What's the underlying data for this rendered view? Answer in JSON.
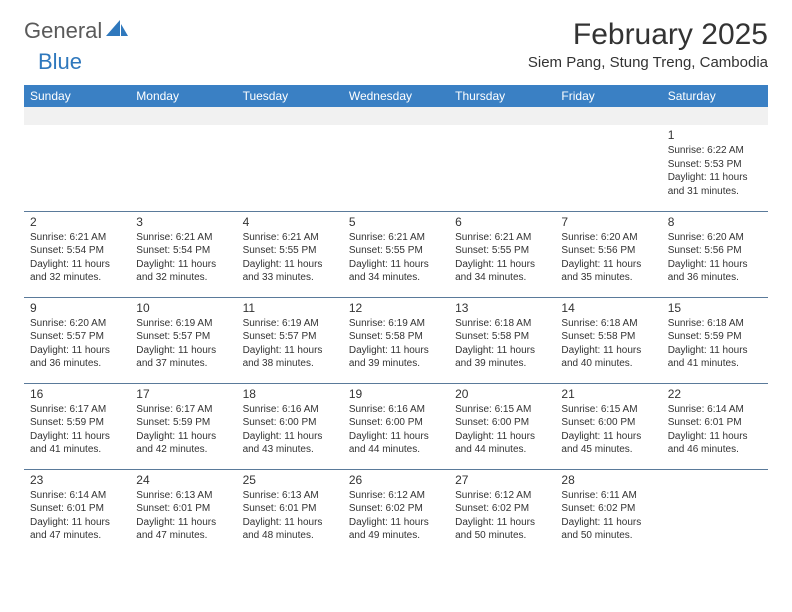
{
  "logo": {
    "text_general": "General",
    "text_blue": "Blue",
    "sail_color": "#2f78bd"
  },
  "title": "February 2025",
  "location": "Siem Pang, Stung Treng, Cambodia",
  "header_row_bg": "#3a80c4",
  "header_row_fg": "#ffffff",
  "divider_color": "#5a7a9a",
  "blank_row_bg": "#f1f1f1",
  "weekdays": [
    "Sunday",
    "Monday",
    "Tuesday",
    "Wednesday",
    "Thursday",
    "Friday",
    "Saturday"
  ],
  "weeks": [
    [
      null,
      null,
      null,
      null,
      null,
      null,
      {
        "d": "1",
        "sr": "Sunrise: 6:22 AM",
        "ss": "Sunset: 5:53 PM",
        "dl1": "Daylight: 11 hours",
        "dl2": "and 31 minutes."
      }
    ],
    [
      {
        "d": "2",
        "sr": "Sunrise: 6:21 AM",
        "ss": "Sunset: 5:54 PM",
        "dl1": "Daylight: 11 hours",
        "dl2": "and 32 minutes."
      },
      {
        "d": "3",
        "sr": "Sunrise: 6:21 AM",
        "ss": "Sunset: 5:54 PM",
        "dl1": "Daylight: 11 hours",
        "dl2": "and 32 minutes."
      },
      {
        "d": "4",
        "sr": "Sunrise: 6:21 AM",
        "ss": "Sunset: 5:55 PM",
        "dl1": "Daylight: 11 hours",
        "dl2": "and 33 minutes."
      },
      {
        "d": "5",
        "sr": "Sunrise: 6:21 AM",
        "ss": "Sunset: 5:55 PM",
        "dl1": "Daylight: 11 hours",
        "dl2": "and 34 minutes."
      },
      {
        "d": "6",
        "sr": "Sunrise: 6:21 AM",
        "ss": "Sunset: 5:55 PM",
        "dl1": "Daylight: 11 hours",
        "dl2": "and 34 minutes."
      },
      {
        "d": "7",
        "sr": "Sunrise: 6:20 AM",
        "ss": "Sunset: 5:56 PM",
        "dl1": "Daylight: 11 hours",
        "dl2": "and 35 minutes."
      },
      {
        "d": "8",
        "sr": "Sunrise: 6:20 AM",
        "ss": "Sunset: 5:56 PM",
        "dl1": "Daylight: 11 hours",
        "dl2": "and 36 minutes."
      }
    ],
    [
      {
        "d": "9",
        "sr": "Sunrise: 6:20 AM",
        "ss": "Sunset: 5:57 PM",
        "dl1": "Daylight: 11 hours",
        "dl2": "and 36 minutes."
      },
      {
        "d": "10",
        "sr": "Sunrise: 6:19 AM",
        "ss": "Sunset: 5:57 PM",
        "dl1": "Daylight: 11 hours",
        "dl2": "and 37 minutes."
      },
      {
        "d": "11",
        "sr": "Sunrise: 6:19 AM",
        "ss": "Sunset: 5:57 PM",
        "dl1": "Daylight: 11 hours",
        "dl2": "and 38 minutes."
      },
      {
        "d": "12",
        "sr": "Sunrise: 6:19 AM",
        "ss": "Sunset: 5:58 PM",
        "dl1": "Daylight: 11 hours",
        "dl2": "and 39 minutes."
      },
      {
        "d": "13",
        "sr": "Sunrise: 6:18 AM",
        "ss": "Sunset: 5:58 PM",
        "dl1": "Daylight: 11 hours",
        "dl2": "and 39 minutes."
      },
      {
        "d": "14",
        "sr": "Sunrise: 6:18 AM",
        "ss": "Sunset: 5:58 PM",
        "dl1": "Daylight: 11 hours",
        "dl2": "and 40 minutes."
      },
      {
        "d": "15",
        "sr": "Sunrise: 6:18 AM",
        "ss": "Sunset: 5:59 PM",
        "dl1": "Daylight: 11 hours",
        "dl2": "and 41 minutes."
      }
    ],
    [
      {
        "d": "16",
        "sr": "Sunrise: 6:17 AM",
        "ss": "Sunset: 5:59 PM",
        "dl1": "Daylight: 11 hours",
        "dl2": "and 41 minutes."
      },
      {
        "d": "17",
        "sr": "Sunrise: 6:17 AM",
        "ss": "Sunset: 5:59 PM",
        "dl1": "Daylight: 11 hours",
        "dl2": "and 42 minutes."
      },
      {
        "d": "18",
        "sr": "Sunrise: 6:16 AM",
        "ss": "Sunset: 6:00 PM",
        "dl1": "Daylight: 11 hours",
        "dl2": "and 43 minutes."
      },
      {
        "d": "19",
        "sr": "Sunrise: 6:16 AM",
        "ss": "Sunset: 6:00 PM",
        "dl1": "Daylight: 11 hours",
        "dl2": "and 44 minutes."
      },
      {
        "d": "20",
        "sr": "Sunrise: 6:15 AM",
        "ss": "Sunset: 6:00 PM",
        "dl1": "Daylight: 11 hours",
        "dl2": "and 44 minutes."
      },
      {
        "d": "21",
        "sr": "Sunrise: 6:15 AM",
        "ss": "Sunset: 6:00 PM",
        "dl1": "Daylight: 11 hours",
        "dl2": "and 45 minutes."
      },
      {
        "d": "22",
        "sr": "Sunrise: 6:14 AM",
        "ss": "Sunset: 6:01 PM",
        "dl1": "Daylight: 11 hours",
        "dl2": "and 46 minutes."
      }
    ],
    [
      {
        "d": "23",
        "sr": "Sunrise: 6:14 AM",
        "ss": "Sunset: 6:01 PM",
        "dl1": "Daylight: 11 hours",
        "dl2": "and 47 minutes."
      },
      {
        "d": "24",
        "sr": "Sunrise: 6:13 AM",
        "ss": "Sunset: 6:01 PM",
        "dl1": "Daylight: 11 hours",
        "dl2": "and 47 minutes."
      },
      {
        "d": "25",
        "sr": "Sunrise: 6:13 AM",
        "ss": "Sunset: 6:01 PM",
        "dl1": "Daylight: 11 hours",
        "dl2": "and 48 minutes."
      },
      {
        "d": "26",
        "sr": "Sunrise: 6:12 AM",
        "ss": "Sunset: 6:02 PM",
        "dl1": "Daylight: 11 hours",
        "dl2": "and 49 minutes."
      },
      {
        "d": "27",
        "sr": "Sunrise: 6:12 AM",
        "ss": "Sunset: 6:02 PM",
        "dl1": "Daylight: 11 hours",
        "dl2": "and 50 minutes."
      },
      {
        "d": "28",
        "sr": "Sunrise: 6:11 AM",
        "ss": "Sunset: 6:02 PM",
        "dl1": "Daylight: 11 hours",
        "dl2": "and 50 minutes."
      },
      null
    ]
  ]
}
